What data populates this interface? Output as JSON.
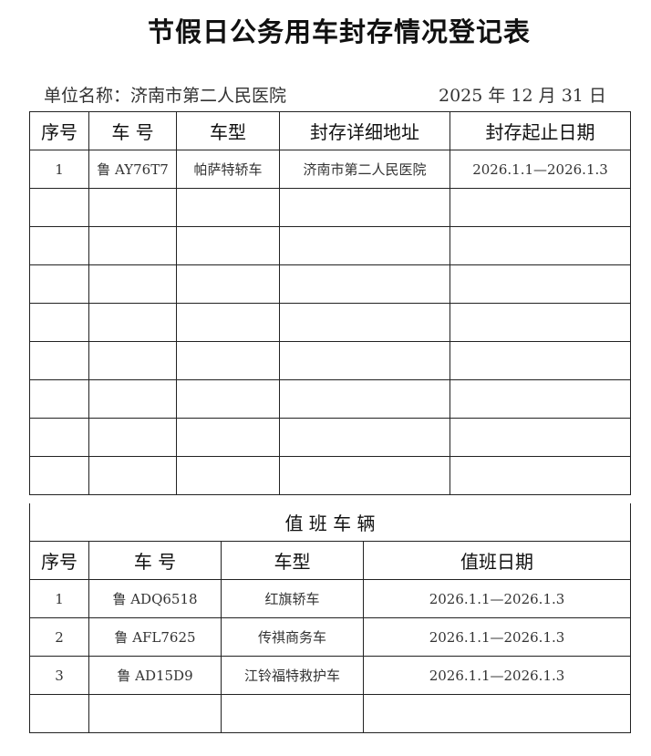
{
  "title": "节假日公务用车封存情况登记表",
  "unit": "单位名称：济南市第二人民医院",
  "date": "2025 年 12 月 31 日",
  "sealed": {
    "headers": [
      "序号",
      "车 号",
      "车型",
      "封存详细地址",
      "封存起止日期"
    ],
    "rows": [
      [
        "1",
        "鲁 AY76T7",
        "帕萨特轿车",
        "济南市第二人民医院",
        "2026.1.1—2026.1.3"
      ]
    ],
    "empty_rows": 8
  },
  "duty": {
    "section_title": "值 班 车 辆",
    "headers": [
      "序号",
      "车 号",
      "车型",
      "值班日期"
    ],
    "rows": [
      [
        "1",
        "鲁 ADQ6518",
        "红旗轿车",
        "2026.1.1—2026.1.3"
      ],
      [
        "2",
        "鲁 AFL7625",
        "传祺商务车",
        "2026.1.1—2026.1.3"
      ],
      [
        "3",
        "鲁 AD15D9",
        "江铃福特救护车",
        "2026.1.1—2026.1.3"
      ]
    ],
    "empty_rows": 1
  }
}
